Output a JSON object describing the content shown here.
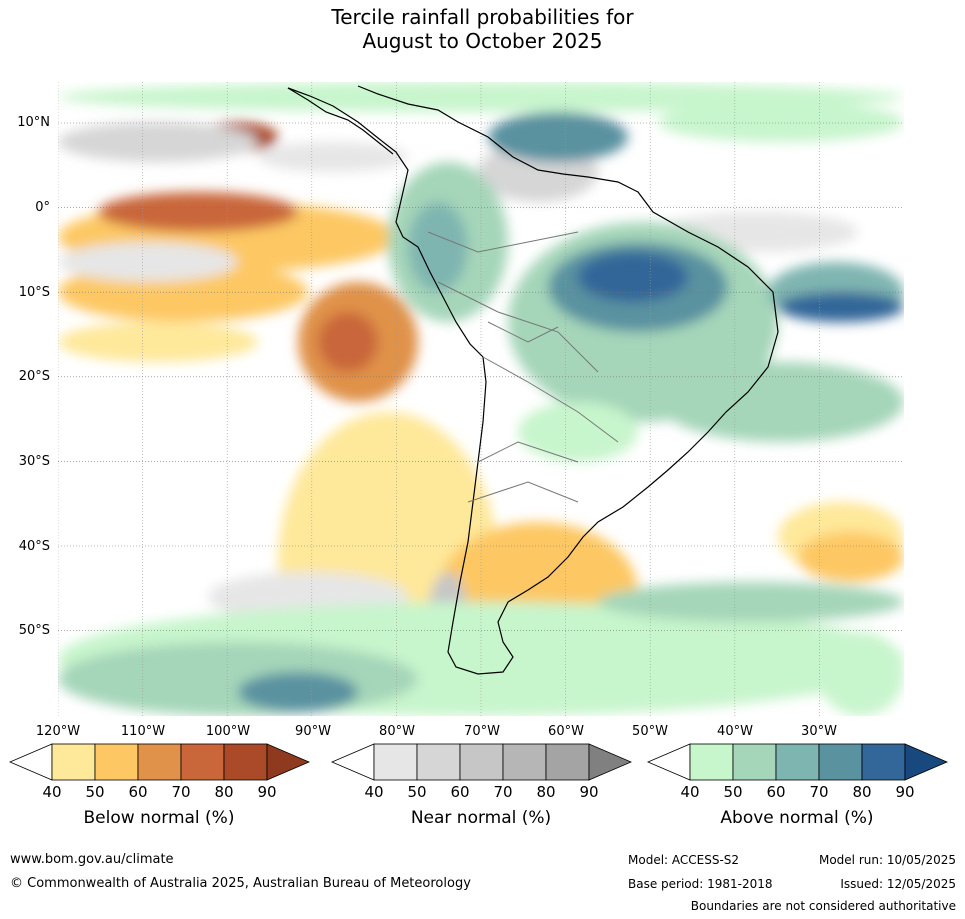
{
  "title_line1": "Tercile rainfall probabilities for",
  "title_line2": "August to October 2025",
  "lat_labels": [
    "10°N",
    "0°",
    "10°S",
    "20°S",
    "30°S",
    "40°S",
    "50°S"
  ],
  "lon_labels": [
    "120°W",
    "110°W",
    "100°W",
    "90°W",
    "80°W",
    "70°W",
    "60°W",
    "50°W",
    "40°W",
    "30°W"
  ],
  "colorbars": [
    {
      "title": "Below normal (%)",
      "ticks": [
        "40",
        "50",
        "60",
        "70",
        "80",
        "90"
      ],
      "colors": [
        "#ffffff",
        "#fee89a",
        "#fdc863",
        "#e0924a",
        "#c9663a",
        "#aa4a28",
        "#8f3a1f"
      ]
    },
    {
      "title": "Near normal (%)",
      "ticks": [
        "40",
        "50",
        "60",
        "70",
        "80",
        "90"
      ],
      "colors": [
        "#ffffff",
        "#e6e6e6",
        "#d6d6d6",
        "#c6c6c6",
        "#b6b6b6",
        "#a4a4a4",
        "#808080"
      ]
    },
    {
      "title": "Above normal (%)",
      "ticks": [
        "40",
        "50",
        "60",
        "70",
        "80",
        "90"
      ],
      "colors": [
        "#ffffff",
        "#c7f5cc",
        "#a5d6b9",
        "#7fb5b1",
        "#5a92a0",
        "#336699",
        "#17497e"
      ]
    }
  ],
  "footer": {
    "website": "www.bom.gov.au/climate",
    "copyright": "© Commonwealth of Australia 2025, Australian Bureau of Meteorology",
    "model": "Model: ACCESS-S2",
    "base_period": "Base period: 1981-2018",
    "model_run": "Model run: 10/05/2025",
    "issued": "Issued: 12/05/2025",
    "disclaimer": "Boundaries are not considered authoritative"
  },
  "map_palette": {
    "below": [
      "#fee89a",
      "#fdc863",
      "#e0924a",
      "#c9663a",
      "#aa4a28"
    ],
    "near": [
      "#e6e6e6",
      "#d6d6d6",
      "#c6c6c6"
    ],
    "above": [
      "#c7f5cc",
      "#a5d6b9",
      "#7fb5b1",
      "#5a92a0",
      "#336699"
    ]
  }
}
